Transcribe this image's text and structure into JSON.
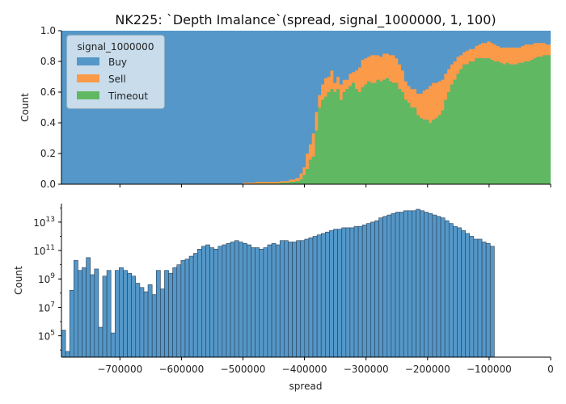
{
  "title": "NK225: `Depth Imalance`(spread, signal_1000000, 1, 100)",
  "colors": {
    "buy": "#5497c8",
    "sell": "#fb9a48",
    "timeout": "#61b862",
    "bar_edge": "#2a3f54",
    "axis": "#000000",
    "legend_bg": "#dde8f1"
  },
  "legend": {
    "title": "signal_1000000",
    "placement": "top-left",
    "items": [
      {
        "label": "Buy",
        "color_key": "buy"
      },
      {
        "label": "Sell",
        "color_key": "sell"
      },
      {
        "label": "Timeout",
        "color_key": "timeout"
      }
    ]
  },
  "chart_data": [
    {
      "type": "area",
      "stacked": true,
      "normalized": true,
      "ylabel": "Count",
      "xlim": [
        -795000,
        0
      ],
      "ylim": [
        0,
        1
      ],
      "yticks": [
        "0.0",
        "0.2",
        "0.4",
        "0.6",
        "0.8",
        "1.0"
      ],
      "series": [
        {
          "name": "Timeout",
          "color_key": "timeout",
          "points": [
            [
              -795000,
              0
            ],
            [
              -500000,
              0
            ],
            [
              -480000,
              0.005
            ],
            [
              -460000,
              0.005
            ],
            [
              -440000,
              0.01
            ],
            [
              -425000,
              0.015
            ],
            [
              -415000,
              0.02
            ],
            [
              -408000,
              0.03
            ],
            [
              -403000,
              0.06
            ],
            [
              -398000,
              0.1
            ],
            [
              -393000,
              0.16
            ],
            [
              -388000,
              0.18
            ],
            [
              -383000,
              0.35
            ],
            [
              -378000,
              0.5
            ],
            [
              -373000,
              0.55
            ],
            [
              -368000,
              0.57
            ],
            [
              -363000,
              0.6
            ],
            [
              -358000,
              0.62
            ],
            [
              -353000,
              0.6
            ],
            [
              -348000,
              0.62
            ],
            [
              -343000,
              0.55
            ],
            [
              -338000,
              0.6
            ],
            [
              -333000,
              0.62
            ],
            [
              -328000,
              0.64
            ],
            [
              -323000,
              0.66
            ],
            [
              -318000,
              0.62
            ],
            [
              -313000,
              0.6
            ],
            [
              -308000,
              0.63
            ],
            [
              -303000,
              0.65
            ],
            [
              -298000,
              0.67
            ],
            [
              -293000,
              0.66
            ],
            [
              -288000,
              0.66
            ],
            [
              -283000,
              0.68
            ],
            [
              -278000,
              0.67
            ],
            [
              -273000,
              0.68
            ],
            [
              -268000,
              0.69
            ],
            [
              -263000,
              0.67
            ],
            [
              -258000,
              0.66
            ],
            [
              -253000,
              0.66
            ],
            [
              -248000,
              0.62
            ],
            [
              -243000,
              0.6
            ],
            [
              -238000,
              0.55
            ],
            [
              -233000,
              0.53
            ],
            [
              -228000,
              0.5
            ],
            [
              -223000,
              0.5
            ],
            [
              -218000,
              0.45
            ],
            [
              -213000,
              0.43
            ],
            [
              -208000,
              0.42
            ],
            [
              -203000,
              0.42
            ],
            [
              -198000,
              0.4
            ],
            [
              -193000,
              0.42
            ],
            [
              -188000,
              0.43
            ],
            [
              -183000,
              0.45
            ],
            [
              -178000,
              0.48
            ],
            [
              -173000,
              0.55
            ],
            [
              -168000,
              0.6
            ],
            [
              -163000,
              0.65
            ],
            [
              -158000,
              0.68
            ],
            [
              -153000,
              0.72
            ],
            [
              -148000,
              0.75
            ],
            [
              -143000,
              0.78
            ],
            [
              -138000,
              0.78
            ],
            [
              -133000,
              0.8
            ],
            [
              -128000,
              0.8
            ],
            [
              -123000,
              0.82
            ],
            [
              -118000,
              0.82
            ],
            [
              -113000,
              0.82
            ],
            [
              -108000,
              0.82
            ],
            [
              -103000,
              0.82
            ],
            [
              -98000,
              0.81
            ],
            [
              -93000,
              0.8
            ],
            [
              -88000,
              0.8
            ],
            [
              -83000,
              0.79
            ],
            [
              -78000,
              0.78
            ],
            [
              -73000,
              0.79
            ],
            [
              -68000,
              0.78
            ],
            [
              -63000,
              0.78
            ],
            [
              -58000,
              0.78
            ],
            [
              -53000,
              0.79
            ],
            [
              -48000,
              0.79
            ],
            [
              -43000,
              0.8
            ],
            [
              -38000,
              0.8
            ],
            [
              -33000,
              0.81
            ],
            [
              -28000,
              0.82
            ],
            [
              -23000,
              0.83
            ],
            [
              -18000,
              0.83
            ],
            [
              -13000,
              0.84
            ],
            [
              -8000,
              0.84
            ],
            [
              -3000,
              0.84
            ],
            [
              0,
              0.84
            ]
          ]
        },
        {
          "name": "Sell",
          "color_key": "sell",
          "points": [
            [
              -795000,
              0
            ],
            [
              -500000,
              0.01
            ],
            [
              -480000,
              0.01
            ],
            [
              -460000,
              0.01
            ],
            [
              -440000,
              0.01
            ],
            [
              -425000,
              0.015
            ],
            [
              -415000,
              0.02
            ],
            [
              -408000,
              0.04
            ],
            [
              -403000,
              0.05
            ],
            [
              -398000,
              0.1
            ],
            [
              -393000,
              0.1
            ],
            [
              -388000,
              0.15
            ],
            [
              -383000,
              0.12
            ],
            [
              -378000,
              0.08
            ],
            [
              -373000,
              0.1
            ],
            [
              -368000,
              0.12
            ],
            [
              -363000,
              0.1
            ],
            [
              -358000,
              0.12
            ],
            [
              -353000,
              0.06
            ],
            [
              -348000,
              0.08
            ],
            [
              -343000,
              0.1
            ],
            [
              -338000,
              0.08
            ],
            [
              -333000,
              0.06
            ],
            [
              -328000,
              0.08
            ],
            [
              -323000,
              0.07
            ],
            [
              -318000,
              0.12
            ],
            [
              -313000,
              0.16
            ],
            [
              -308000,
              0.18
            ],
            [
              -303000,
              0.17
            ],
            [
              -298000,
              0.16
            ],
            [
              -293000,
              0.18
            ],
            [
              -288000,
              0.18
            ],
            [
              -283000,
              0.16
            ],
            [
              -278000,
              0.16
            ],
            [
              -273000,
              0.17
            ],
            [
              -268000,
              0.16
            ],
            [
              -263000,
              0.17
            ],
            [
              -258000,
              0.18
            ],
            [
              -253000,
              0.16
            ],
            [
              -248000,
              0.16
            ],
            [
              -243000,
              0.14
            ],
            [
              -238000,
              0.12
            ],
            [
              -233000,
              0.11
            ],
            [
              -228000,
              0.12
            ],
            [
              -223000,
              0.12
            ],
            [
              -218000,
              0.14
            ],
            [
              -213000,
              0.16
            ],
            [
              -208000,
              0.19
            ],
            [
              -203000,
              0.2
            ],
            [
              -198000,
              0.24
            ],
            [
              -193000,
              0.24
            ],
            [
              -188000,
              0.23
            ],
            [
              -183000,
              0.22
            ],
            [
              -178000,
              0.2
            ],
            [
              -173000,
              0.17
            ],
            [
              -168000,
              0.15
            ],
            [
              -163000,
              0.13
            ],
            [
              -158000,
              0.12
            ],
            [
              -153000,
              0.11
            ],
            [
              -148000,
              0.09
            ],
            [
              -143000,
              0.08
            ],
            [
              -138000,
              0.09
            ],
            [
              -133000,
              0.08
            ],
            [
              -128000,
              0.08
            ],
            [
              -123000,
              0.08
            ],
            [
              -118000,
              0.09
            ],
            [
              -113000,
              0.1
            ],
            [
              -108000,
              0.1
            ],
            [
              -103000,
              0.11
            ],
            [
              -98000,
              0.11
            ],
            [
              -93000,
              0.11
            ],
            [
              -88000,
              0.1
            ],
            [
              -83000,
              0.1
            ],
            [
              -78000,
              0.11
            ],
            [
              -73000,
              0.1
            ],
            [
              -68000,
              0.11
            ],
            [
              -63000,
              0.11
            ],
            [
              -58000,
              0.11
            ],
            [
              -53000,
              0.1
            ],
            [
              -48000,
              0.11
            ],
            [
              -43000,
              0.11
            ],
            [
              -38000,
              0.11
            ],
            [
              -33000,
              0.1
            ],
            [
              -28000,
              0.1
            ],
            [
              -23000,
              0.09
            ],
            [
              -18000,
              0.09
            ],
            [
              -13000,
              0.08
            ],
            [
              -8000,
              0.07
            ],
            [
              -3000,
              0.07
            ],
            [
              0,
              0.07
            ]
          ]
        },
        {
          "name": "Buy",
          "color_key": "buy",
          "remainder_to": 1
        }
      ]
    },
    {
      "type": "bar",
      "histogram": true,
      "yscale": "log",
      "xlabel": "spread",
      "ylabel": "Count",
      "xlim": [
        -795000,
        0
      ],
      "ylim_log10": [
        3.5,
        14.3
      ],
      "bin_width": 6700,
      "xticks": [
        {
          "value": -700000,
          "label": "−700000"
        },
        {
          "value": -600000,
          "label": "−600000"
        },
        {
          "value": -500000,
          "label": "−500000"
        },
        {
          "value": -400000,
          "label": "−400000"
        },
        {
          "value": -300000,
          "label": "−300000"
        },
        {
          "value": -200000,
          "label": "−200000"
        },
        {
          "value": -100000,
          "label": "−100000"
        },
        {
          "value": 0,
          "label": "0"
        }
      ],
      "yticks": [
        {
          "exp": 5,
          "base": "10",
          "sup": "5"
        },
        {
          "exp": 7,
          "base": "10",
          "sup": "7"
        },
        {
          "exp": 9,
          "base": "10",
          "sup": "9"
        },
        {
          "exp": 11,
          "base": "10",
          "sup": "11"
        },
        {
          "exp": 13,
          "base": "10",
          "sup": "13"
        }
      ],
      "log10_counts": [
        5.4,
        3.9,
        8.2,
        10.3,
        9.6,
        9.8,
        10.5,
        9.3,
        9.7,
        5.6,
        9.2,
        9.6,
        5.2,
        9.6,
        9.8,
        9.6,
        9.4,
        9.2,
        8.7,
        8.4,
        8.1,
        8.6,
        7.9,
        9.6,
        8.3,
        9.6,
        9.4,
        9.8,
        10.0,
        10.3,
        10.4,
        10.6,
        10.8,
        11.1,
        11.3,
        11.4,
        11.2,
        11.1,
        11.3,
        11.4,
        11.5,
        11.6,
        11.7,
        11.6,
        11.5,
        11.4,
        11.2,
        11.2,
        11.1,
        11.2,
        11.4,
        11.5,
        11.4,
        11.7,
        11.7,
        11.6,
        11.6,
        11.7,
        11.7,
        11.8,
        11.9,
        12.0,
        12.1,
        12.2,
        12.3,
        12.4,
        12.5,
        12.5,
        12.6,
        12.6,
        12.6,
        12.7,
        12.7,
        12.8,
        12.9,
        13.0,
        13.1,
        13.3,
        13.4,
        13.5,
        13.6,
        13.7,
        13.7,
        13.8,
        13.8,
        13.8,
        13.9,
        13.8,
        13.7,
        13.6,
        13.5,
        13.4,
        13.3,
        13.1,
        12.9,
        12.7,
        12.6,
        12.4,
        12.2,
        12.0,
        11.8,
        11.8,
        11.6,
        11.5,
        11.3
      ]
    }
  ]
}
